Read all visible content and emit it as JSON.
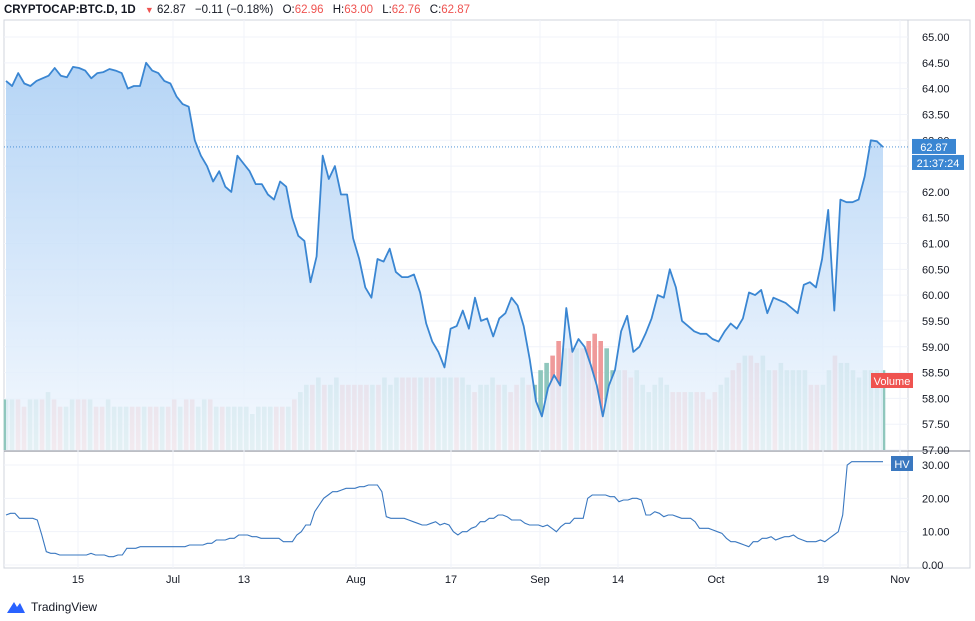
{
  "header": {
    "symbol": "CRYPTOCAP:BTC.D, 1D",
    "arrow": "▼",
    "last": "62.87",
    "change": "−0.11 (−0.18%)",
    "o_label": "O:",
    "o_value": "62.96",
    "h_label": "H:",
    "h_value": "63.00",
    "l_label": "L:",
    "l_value": "62.76",
    "c_label": "C:",
    "c_value": "62.87"
  },
  "branding": {
    "name": "TradingView"
  },
  "chart_data": {
    "type": "area",
    "title": "CRYPTOCAP:BTC.D, 1D",
    "y_ticks": [
      "65.00",
      "64.50",
      "64.00",
      "63.50",
      "63.00",
      "62.50",
      "62.00",
      "61.50",
      "61.00",
      "60.50",
      "60.00",
      "59.50",
      "59.00",
      "58.50",
      "58.00",
      "57.50",
      "57.00"
    ],
    "x_ticks": [
      "15",
      "Jul",
      "13",
      "Aug",
      "17",
      "Sep",
      "14",
      "Oct",
      "19",
      "Nov"
    ],
    "ylim": [
      57.0,
      65.25
    ],
    "price": [
      64.15,
      64.05,
      64.3,
      64.1,
      64.05,
      64.15,
      64.2,
      64.25,
      64.4,
      64.25,
      64.22,
      64.42,
      64.4,
      64.35,
      64.2,
      64.3,
      64.32,
      64.38,
      64.35,
      64.3,
      64.0,
      64.05,
      64.05,
      64.5,
      64.35,
      64.3,
      64.15,
      64.1,
      63.85,
      63.7,
      63.65,
      63.0,
      62.7,
      62.5,
      62.2,
      62.4,
      62.1,
      62.0,
      62.7,
      62.55,
      62.4,
      62.15,
      62.15,
      61.95,
      61.85,
      62.2,
      62.1,
      61.5,
      61.15,
      61.05,
      60.25,
      60.75,
      62.7,
      62.25,
      62.5,
      61.95,
      61.95,
      61.1,
      60.7,
      60.15,
      59.95,
      60.7,
      60.65,
      60.9,
      60.45,
      60.35,
      60.35,
      60.4,
      60.05,
      59.45,
      59.1,
      58.9,
      58.6,
      59.35,
      59.4,
      59.7,
      59.35,
      59.95,
      59.5,
      59.55,
      59.2,
      59.55,
      59.65,
      59.95,
      59.8,
      59.4,
      58.75,
      57.95,
      57.65,
      58.2,
      58.45,
      58.25,
      59.75,
      58.9,
      59.15,
      59.0,
      58.65,
      58.25,
      57.65,
      58.25,
      58.55,
      59.3,
      59.6,
      58.9,
      59.0,
      59.25,
      59.55,
      60.0,
      59.95,
      60.5,
      60.15,
      59.5,
      59.4,
      59.3,
      59.25,
      59.25,
      59.15,
      59.1,
      59.3,
      59.45,
      59.35,
      59.55,
      60.05,
      60.0,
      60.1,
      59.65,
      59.95,
      59.9,
      59.85,
      59.75,
      59.65,
      60.2,
      60.25,
      60.15,
      60.7,
      61.65,
      59.7,
      61.85,
      61.8,
      61.8,
      61.85,
      62.3,
      63.0,
      62.98,
      62.87
    ],
    "price_last": "62.87",
    "countdown": "21:37:24",
    "volume_label": "Volume",
    "volume": [
      [
        2,
        1
      ],
      [
        2,
        1
      ],
      [
        2,
        0
      ],
      [
        1,
        0
      ],
      [
        2,
        1
      ],
      [
        2,
        1
      ],
      [
        2,
        0
      ],
      [
        3,
        1
      ],
      [
        2,
        0
      ],
      [
        1,
        0
      ],
      [
        1,
        1
      ],
      [
        2,
        1
      ],
      [
        2,
        0
      ],
      [
        2,
        0
      ],
      [
        2,
        1
      ],
      [
        1,
        0
      ],
      [
        1,
        0
      ],
      [
        2,
        1
      ],
      [
        1,
        1
      ],
      [
        1,
        1
      ],
      [
        1,
        1
      ],
      [
        1,
        0
      ],
      [
        1,
        0
      ],
      [
        1,
        1
      ],
      [
        1,
        0
      ],
      [
        1,
        0
      ],
      [
        1,
        1
      ],
      [
        1,
        0
      ],
      [
        2,
        0
      ],
      [
        1,
        1
      ],
      [
        2,
        0
      ],
      [
        2,
        0
      ],
      [
        1,
        1
      ],
      [
        2,
        1
      ],
      [
        2,
        0
      ],
      [
        1,
        1
      ],
      [
        1,
        0
      ],
      [
        1,
        1
      ],
      [
        1,
        1
      ],
      [
        1,
        1
      ],
      [
        1,
        1
      ],
      [
        0,
        1
      ],
      [
        1,
        1
      ],
      [
        1,
        1
      ],
      [
        1,
        1
      ],
      [
        1,
        0
      ],
      [
        1,
        0
      ],
      [
        1,
        1
      ],
      [
        2,
        0
      ],
      [
        3,
        1
      ],
      [
        4,
        1
      ],
      [
        4,
        0
      ],
      [
        5,
        1
      ],
      [
        4,
        0
      ],
      [
        4,
        1
      ],
      [
        5,
        1
      ],
      [
        4,
        0
      ],
      [
        4,
        0
      ],
      [
        4,
        0
      ],
      [
        4,
        0
      ],
      [
        4,
        0
      ],
      [
        4,
        1
      ],
      [
        4,
        0
      ],
      [
        5,
        1
      ],
      [
        4,
        1
      ],
      [
        5,
        1
      ],
      [
        5,
        0
      ],
      [
        5,
        0
      ],
      [
        5,
        0
      ],
      [
        5,
        1
      ],
      [
        5,
        0
      ],
      [
        5,
        0
      ],
      [
        5,
        1
      ],
      [
        5,
        1
      ],
      [
        5,
        1
      ],
      [
        5,
        0
      ],
      [
        5,
        1
      ],
      [
        4,
        1
      ],
      [
        3,
        0
      ],
      [
        4,
        1
      ],
      [
        4,
        1
      ],
      [
        5,
        1
      ],
      [
        4,
        0
      ],
      [
        4,
        1
      ],
      [
        3,
        0
      ],
      [
        4,
        0
      ],
      [
        5,
        1
      ],
      [
        4,
        0
      ],
      [
        4,
        1
      ],
      [
        6,
        1
      ],
      [
        7,
        1
      ],
      [
        8,
        0
      ],
      [
        10,
        0
      ],
      [
        9,
        1
      ],
      [
        9,
        0
      ],
      [
        9,
        1
      ],
      [
        9,
        0
      ],
      [
        10,
        0
      ],
      [
        11,
        0
      ],
      [
        10,
        0
      ],
      [
        9,
        1
      ],
      [
        6,
        1
      ],
      [
        6,
        1
      ],
      [
        6,
        0
      ],
      [
        5,
        0
      ],
      [
        6,
        1
      ],
      [
        4,
        1
      ],
      [
        3,
        1
      ],
      [
        4,
        1
      ],
      [
        5,
        1
      ],
      [
        4,
        1
      ],
      [
        3,
        0
      ],
      [
        3,
        0
      ],
      [
        3,
        0
      ],
      [
        3,
        1
      ],
      [
        3,
        0
      ],
      [
        3,
        0
      ],
      [
        2,
        0
      ],
      [
        3,
        0
      ],
      [
        4,
        1
      ],
      [
        5,
        1
      ],
      [
        6,
        0
      ],
      [
        7,
        0
      ],
      [
        8,
        1
      ],
      [
        8,
        0
      ],
      [
        7,
        0
      ],
      [
        8,
        1
      ],
      [
        6,
        1
      ],
      [
        6,
        0
      ],
      [
        7,
        1
      ],
      [
        6,
        1
      ],
      [
        6,
        1
      ],
      [
        6,
        1
      ],
      [
        6,
        1
      ],
      [
        4,
        0
      ],
      [
        4,
        0
      ],
      [
        4,
        1
      ],
      [
        6,
        1
      ],
      [
        8,
        0
      ],
      [
        7,
        1
      ],
      [
        7,
        1
      ],
      [
        6,
        1
      ],
      [
        5,
        1
      ],
      [
        6,
        1
      ],
      [
        6,
        1
      ],
      [
        6,
        1
      ],
      [
        6,
        1
      ]
    ],
    "hv_label": "HV",
    "hv_ticks": [
      "30.00",
      "20.00",
      "10.00",
      "0.00"
    ],
    "hv_ylim": [
      0,
      32
    ],
    "hv": [
      15,
      15.5,
      15.5,
      14,
      14,
      14,
      14,
      13.5,
      9,
      4,
      3.5,
      3.5,
      3,
      3,
      3,
      3,
      3,
      3,
      3,
      3.5,
      3,
      3,
      3,
      2.5,
      2.5,
      3,
      3,
      5,
      5,
      5,
      5.5,
      5.5,
      5.5,
      5.5,
      5.5,
      5.5,
      5.5,
      5.5,
      5.5,
      5.5,
      5.5,
      6,
      6,
      6,
      6,
      6.5,
      6.5,
      7.5,
      7.5,
      7.5,
      8,
      8,
      9,
      9,
      9,
      8.5,
      8.5,
      8,
      8,
      8,
      8,
      8,
      7,
      7,
      7,
      9,
      10,
      12,
      12,
      16,
      18,
      20,
      21,
      22,
      22,
      22.5,
      23,
      23,
      23,
      23.5,
      23.5,
      24,
      24,
      24,
      22,
      14.5,
      14,
      14,
      14,
      14,
      13.5,
      13,
      12.5,
      12,
      12,
      12.5,
      13,
      12,
      12.5,
      12,
      10,
      9,
      10,
      10,
      11,
      11.5,
      13,
      13,
      14,
      14,
      15,
      15,
      14.5,
      13.5,
      13.5,
      13.5,
      12.5,
      12,
      12,
      12,
      11.5,
      12,
      11,
      10,
      11.5,
      12.5,
      12.5,
      14,
      14,
      14,
      20,
      21,
      21,
      21,
      21,
      20.5,
      20.5,
      19,
      19.5,
      19.5,
      20,
      20,
      19.5,
      15,
      15,
      16,
      15.5,
      14.5,
      15,
      15,
      14.5,
      14,
      14,
      14,
      13,
      11,
      11,
      11,
      10.5,
      10,
      9.5,
      8,
      7,
      7,
      6.5,
      6,
      5.5,
      7,
      7,
      8,
      8,
      8.5,
      7.5,
      8,
      8.5,
      8.5,
      9,
      8,
      7.5,
      7,
      7,
      7,
      7.5,
      7,
      8,
      9,
      10,
      15,
      30,
      31,
      31,
      31,
      31,
      31,
      31,
      31,
      31
    ]
  },
  "colors": {
    "line": "#3a86d2",
    "area_top": "#a8cdf4",
    "area_bottom": "#f3f8fe",
    "vol_up": "#8fc7bd",
    "vol_down": "#ef9a9a",
    "hv_line": "#3a78c0",
    "price_tag": "#3a86d2",
    "volume_tag": "#ef5350",
    "hv_tag": "#3a78c0"
  }
}
